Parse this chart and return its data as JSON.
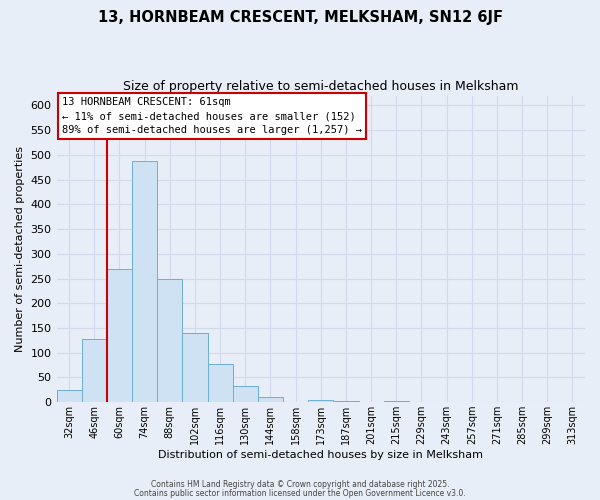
{
  "title": "13, HORNBEAM CRESCENT, MELKSHAM, SN12 6JF",
  "subtitle": "Size of property relative to semi-detached houses in Melksham",
  "xlabel": "Distribution of semi-detached houses by size in Melksham",
  "ylabel": "Number of semi-detached properties",
  "bar_labels": [
    "32sqm",
    "46sqm",
    "60sqm",
    "74sqm",
    "88sqm",
    "102sqm",
    "116sqm",
    "130sqm",
    "144sqm",
    "158sqm",
    "173sqm",
    "187sqm",
    "201sqm",
    "215sqm",
    "229sqm",
    "243sqm",
    "257sqm",
    "271sqm",
    "285sqm",
    "299sqm",
    "313sqm"
  ],
  "bar_values": [
    25,
    128,
    270,
    487,
    250,
    140,
    78,
    32,
    10,
    0,
    5,
    3,
    0,
    2,
    0,
    0,
    0,
    0,
    0,
    0,
    0
  ],
  "bar_color": "#cfe2f3",
  "bar_edge_color": "#6baed6",
  "property_line_color": "#cc0000",
  "property_line_bin": 2,
  "ylim": [
    0,
    620
  ],
  "yticks": [
    0,
    50,
    100,
    150,
    200,
    250,
    300,
    350,
    400,
    450,
    500,
    550,
    600
  ],
  "annotation_title": "13 HORNBEAM CRESCENT: 61sqm",
  "annotation_line1": "← 11% of semi-detached houses are smaller (152)",
  "annotation_line2": "89% of semi-detached houses are larger (1,257) →",
  "footer1": "Contains HM Land Registry data © Crown copyright and database right 2025.",
  "footer2": "Contains public sector information licensed under the Open Government Licence v3.0.",
  "bg_color": "#e8eef7",
  "grid_color": "#d0daea"
}
